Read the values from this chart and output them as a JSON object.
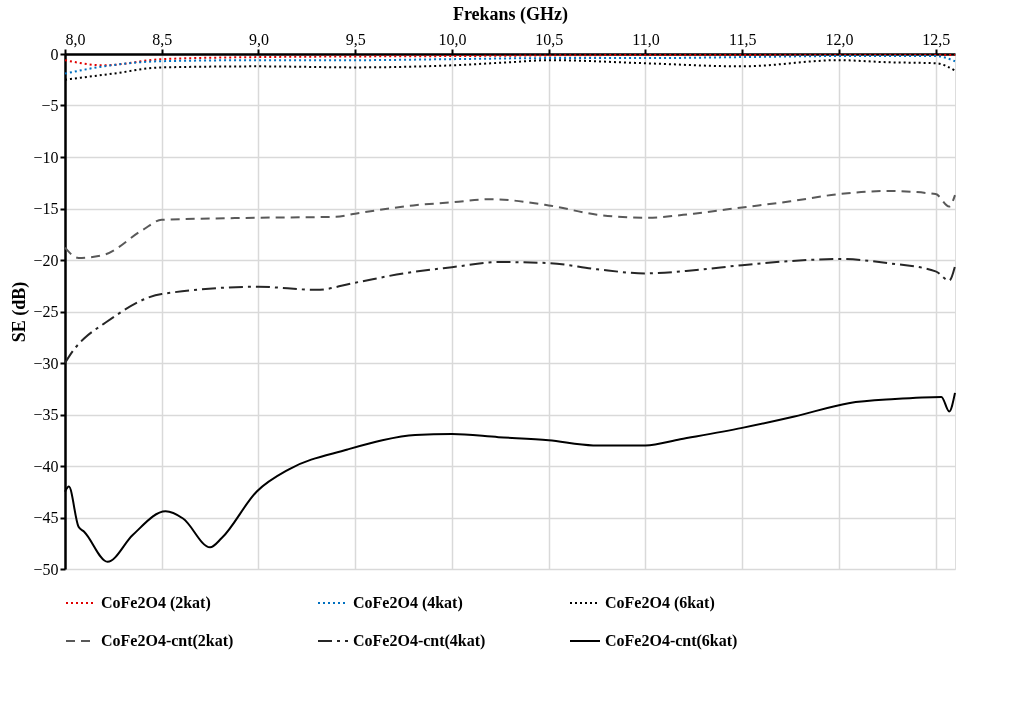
{
  "chart_data": {
    "type": "line",
    "xlabel": "Frekans (GHz)",
    "ylabel": "SE (dB)",
    "xlim": [
      8.0,
      12.6
    ],
    "xticks": [
      {
        "value": 8.0,
        "label": "8,0"
      },
      {
        "value": 8.5,
        "label": "8,5"
      },
      {
        "value": 9.0,
        "label": "9,0"
      },
      {
        "value": 9.5,
        "label": "9,5"
      },
      {
        "value": 10.0,
        "label": "10,0"
      },
      {
        "value": 10.5,
        "label": "10,5"
      },
      {
        "value": 11.0,
        "label": "11,0"
      },
      {
        "value": 11.5,
        "label": "11,5"
      },
      {
        "value": 12.0,
        "label": "12,0"
      },
      {
        "value": 12.5,
        "label": "12,5"
      }
    ],
    "ylim": [
      -50,
      0
    ],
    "yticks": [
      -50,
      -45,
      -40,
      -35,
      -30,
      -25,
      -20,
      -15,
      -10,
      -5,
      0
    ],
    "grid": true,
    "legend": "bottom",
    "marker": "none",
    "series": [
      {
        "name": "CoFe2O4 (2kat)",
        "color": "#e00000",
        "line_style": "dotted",
        "x": [
          8.0,
          8.2,
          8.5,
          9.0,
          10.0,
          11.0,
          12.0,
          12.6
        ],
        "values": [
          -0.6,
          -1.1,
          -0.5,
          -0.3,
          -0.2,
          -0.1,
          -0.1,
          -0.1
        ]
      },
      {
        "name": "CoFe2O4 (4kat)",
        "color": "#0070c0",
        "line_style": "dotted",
        "x": [
          8.0,
          8.2,
          8.5,
          9.0,
          9.5,
          10.0,
          10.5,
          11.0,
          11.5,
          12.0,
          12.5,
          12.6
        ],
        "values": [
          -1.9,
          -1.2,
          -0.7,
          -0.6,
          -0.6,
          -0.5,
          -0.4,
          -0.4,
          -0.3,
          -0.2,
          -0.2,
          -0.7
        ]
      },
      {
        "name": "CoFe2O4 (6kat)",
        "color": "#000000",
        "line_style": "dotted",
        "x": [
          8.0,
          8.25,
          8.5,
          9.0,
          9.5,
          10.0,
          10.3,
          10.5,
          11.0,
          11.5,
          12.0,
          12.25,
          12.5,
          12.6
        ],
        "values": [
          -2.5,
          -1.9,
          -1.3,
          -1.2,
          -1.3,
          -1.1,
          -0.8,
          -0.6,
          -0.9,
          -1.2,
          -0.6,
          -0.8,
          -0.9,
          -1.6
        ]
      },
      {
        "name": "CoFe2O4-cnt(2kat)",
        "color": "#595959",
        "line_style": "dashed",
        "x": [
          8.0,
          8.07,
          8.2,
          8.4,
          8.5,
          9.0,
          9.4,
          9.5,
          9.8,
          10.0,
          10.2,
          10.5,
          10.75,
          11.0,
          11.25,
          11.5,
          11.75,
          12.0,
          12.25,
          12.5,
          12.57,
          12.6
        ],
        "values": [
          -18.8,
          -19.8,
          -19.5,
          -17.1,
          -16.1,
          -15.9,
          -15.8,
          -15.5,
          -14.7,
          -14.4,
          -14.1,
          -14.7,
          -15.6,
          -15.9,
          -15.5,
          -14.9,
          -14.3,
          -13.6,
          -13.3,
          -13.6,
          -14.8,
          -13.7
        ]
      },
      {
        "name": "CoFe2O4-cnt(4kat)",
        "color": "#262626",
        "line_style": "dashdot",
        "x": [
          8.0,
          8.05,
          8.1,
          8.2,
          8.5,
          9.0,
          9.3,
          9.5,
          9.75,
          10.0,
          10.25,
          10.5,
          10.75,
          11.0,
          11.25,
          11.5,
          11.75,
          12.0,
          12.25,
          12.5,
          12.57,
          12.6
        ],
        "values": [
          -30.0,
          -28.6,
          -27.6,
          -26.2,
          -23.3,
          -22.6,
          -22.9,
          -22.2,
          -21.3,
          -20.7,
          -20.2,
          -20.3,
          -20.9,
          -21.3,
          -21.0,
          -20.5,
          -20.1,
          -19.9,
          -20.3,
          -21.1,
          -22.0,
          -20.6
        ]
      },
      {
        "name": "CoFe2O4-cnt(6kat)",
        "color": "#000000",
        "line_style": "solid",
        "x": [
          8.0,
          8.02,
          8.07,
          8.1,
          8.22,
          8.35,
          8.52,
          8.61,
          8.75,
          8.81,
          8.99,
          9.16,
          9.46,
          9.64,
          9.81,
          10.0,
          10.24,
          10.5,
          10.73,
          11.0,
          11.18,
          11.5,
          11.77,
          12.05,
          12.29,
          12.53,
          12.57,
          12.6
        ],
        "values": [
          -42.5,
          -42.0,
          -45.9,
          -46.4,
          -49.3,
          -46.7,
          -44.4,
          -45.1,
          -47.9,
          -47.0,
          -42.5,
          -40.3,
          -38.4,
          -37.5,
          -37.0,
          -36.9,
          -37.2,
          -37.5,
          -38.0,
          -38.0,
          -37.4,
          -36.3,
          -35.2,
          -33.9,
          -33.5,
          -33.3,
          -34.7,
          -32.9
        ]
      }
    ]
  }
}
